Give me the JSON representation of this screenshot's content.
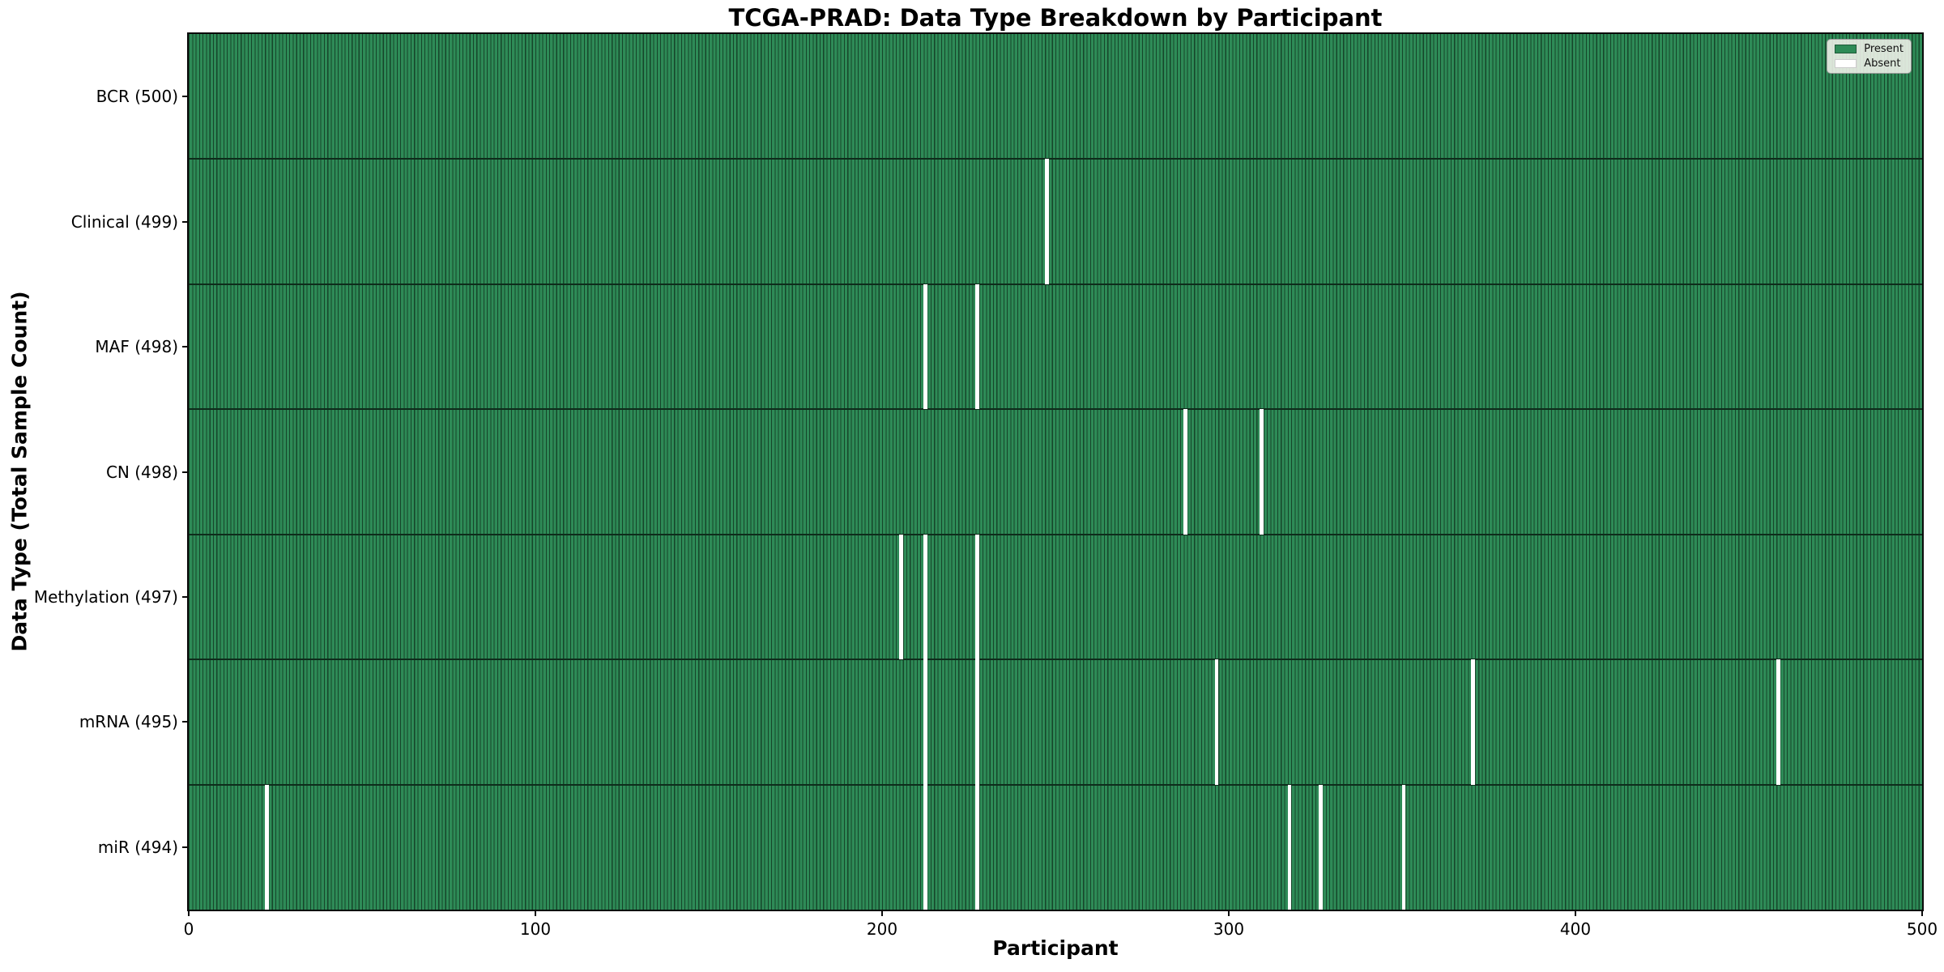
{
  "chart_data": {
    "type": "heatmap",
    "title": "TCGA-PRAD: Data Type Breakdown by Participant",
    "xlabel": "Participant",
    "ylabel": "Data Type (Total Sample Count)",
    "x_ticks": [
      0,
      100,
      200,
      300,
      400,
      500
    ],
    "x_range": [
      0,
      500
    ],
    "n_participants": 500,
    "grid": false,
    "legend_position": "upper right",
    "legend": [
      {
        "label": "Present",
        "color": "#2E8B57"
      },
      {
        "label": "Absent",
        "color": "#FFFFFF"
      }
    ],
    "colors": {
      "present": "#2E8B57",
      "edge": "#16452a",
      "absent": "#FFFFFF",
      "separator": "#0e2c1b"
    },
    "rows": [
      {
        "label": "BCR (500)",
        "data_type": "BCR",
        "total": 500,
        "absent_participants": []
      },
      {
        "label": "Clinical (499)",
        "data_type": "Clinical",
        "total": 499,
        "absent_participants": [
          247
        ]
      },
      {
        "label": "MAF (498)",
        "data_type": "MAF",
        "total": 498,
        "absent_participants": [
          212,
          227
        ]
      },
      {
        "label": "CN (498)",
        "data_type": "CN",
        "total": 498,
        "absent_participants": [
          287,
          309
        ]
      },
      {
        "label": "Methylation (497)",
        "data_type": "Methylation",
        "total": 497,
        "absent_participants": [
          205,
          212,
          227
        ]
      },
      {
        "label": "mRNA (495)",
        "data_type": "mRNA",
        "total": 495,
        "absent_participants": [
          212,
          227,
          296,
          370,
          458
        ]
      },
      {
        "label": "miR (494)",
        "data_type": "miR",
        "total": 494,
        "absent_participants": [
          22,
          212,
          227,
          317,
          326,
          350
        ]
      }
    ]
  }
}
